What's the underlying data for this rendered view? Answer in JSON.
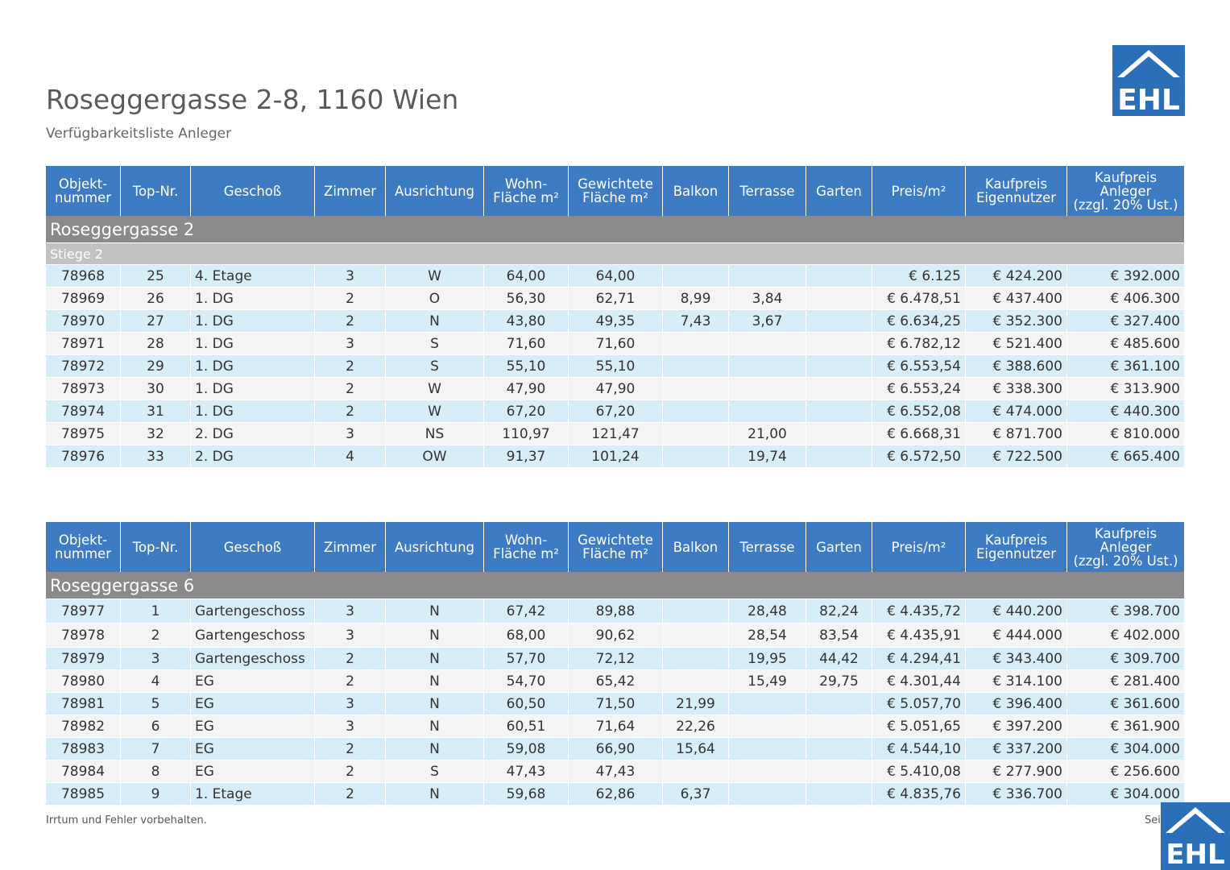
{
  "header": {
    "title": "Roseggergasse 2-8, 1160 Wien",
    "subtitle": "Verfügbarkeitsliste Anleger",
    "logo_text": "EHL"
  },
  "columns": [
    {
      "l1": "Objekt-",
      "l2": "nummer",
      "l3": ""
    },
    {
      "l1": "Top-Nr.",
      "l2": "",
      "l3": ""
    },
    {
      "l1": "Geschoß",
      "l2": "",
      "l3": ""
    },
    {
      "l1": "Zimmer",
      "l2": "",
      "l3": ""
    },
    {
      "l1": "Ausrichtung",
      "l2": "",
      "l3": ""
    },
    {
      "l1": "Wohn-",
      "l2": "Fläche m²",
      "l3": ""
    },
    {
      "l1": "Gewichtete",
      "l2": "Fläche m²",
      "l3": ""
    },
    {
      "l1": "Balkon",
      "l2": "",
      "l3": ""
    },
    {
      "l1": "Terrasse",
      "l2": "",
      "l3": ""
    },
    {
      "l1": "Garten",
      "l2": "",
      "l3": ""
    },
    {
      "l1": "Preis/m²",
      "l2": "",
      "l3": ""
    },
    {
      "l1": "Kaufpreis",
      "l2": "Eigennutzer",
      "l3": ""
    },
    {
      "l1": "Kaufpreis",
      "l2": "Anleger",
      "l3": "(zzgl. 20% Ust.)"
    }
  ],
  "tables": [
    {
      "group": "Roseggergasse 2",
      "subgroup": "Stiege 2",
      "rows": [
        [
          "78968",
          "25",
          "4. Etage",
          "3",
          "W",
          "64,00",
          "64,00",
          "",
          "",
          "",
          "€ 6.125",
          "€ 424.200",
          "€ 392.000"
        ],
        [
          "78969",
          "26",
          "1. DG",
          "2",
          "O",
          "56,30",
          "62,71",
          "8,99",
          "3,84",
          "",
          "€ 6.478,51",
          "€ 437.400",
          "€ 406.300"
        ],
        [
          "78970",
          "27",
          "1. DG",
          "2",
          "N",
          "43,80",
          "49,35",
          "7,43",
          "3,67",
          "",
          "€ 6.634,25",
          "€ 352.300",
          "€ 327.400"
        ],
        [
          "78971",
          "28",
          "1. DG",
          "3",
          "S",
          "71,60",
          "71,60",
          "",
          "",
          "",
          "€ 6.782,12",
          "€ 521.400",
          "€ 485.600"
        ],
        [
          "78972",
          "29",
          "1. DG",
          "2",
          "S",
          "55,10",
          "55,10",
          "",
          "",
          "",
          "€ 6.553,54",
          "€ 388.600",
          "€ 361.100"
        ],
        [
          "78973",
          "30",
          "1. DG",
          "2",
          "W",
          "47,90",
          "47,90",
          "",
          "",
          "",
          "€ 6.553,24",
          "€ 338.300",
          "€ 313.900"
        ],
        [
          "78974",
          "31",
          "1. DG",
          "2",
          "W",
          "67,20",
          "67,20",
          "",
          "",
          "",
          "€ 6.552,08",
          "€ 474.000",
          "€ 440.300"
        ],
        [
          "78975",
          "32",
          "2. DG",
          "3",
          "NS",
          "110,97",
          "121,47",
          "",
          "21,00",
          "",
          "€ 6.668,31",
          "€ 871.700",
          "€ 810.000"
        ],
        [
          "78976",
          "33",
          "2. DG",
          "4",
          "OW",
          "91,37",
          "101,24",
          "",
          "19,74",
          "",
          "€ 6.572,50",
          "€ 722.500",
          "€ 665.400"
        ]
      ]
    },
    {
      "group": "Roseggergasse 6",
      "subgroup": "",
      "rows": [
        [
          "78977",
          "1",
          "Gartengeschoss",
          "3",
          "N",
          "67,42",
          "89,88",
          "",
          "28,48",
          "82,24",
          "€ 4.435,72",
          "€ 440.200",
          "€ 398.700"
        ],
        [
          "78978",
          "2",
          "Gartengeschoss",
          "3",
          "N",
          "68,00",
          "90,62",
          "",
          "28,54",
          "83,54",
          "€ 4.435,91",
          "€ 444.000",
          "€ 402.000"
        ],
        [
          "78979",
          "3",
          "Gartengeschoss",
          "2",
          "N",
          "57,70",
          "72,12",
          "",
          "19,95",
          "44,42",
          "€ 4.294,41",
          "€ 343.400",
          "€ 309.700"
        ],
        [
          "78980",
          "4",
          "EG",
          "2",
          "N",
          "54,70",
          "65,42",
          "",
          "15,49",
          "29,75",
          "€ 4.301,44",
          "€ 314.100",
          "€ 281.400"
        ],
        [
          "78981",
          "5",
          "EG",
          "3",
          "N",
          "60,50",
          "71,50",
          "21,99",
          "",
          "",
          "€ 5.057,70",
          "€ 396.400",
          "€ 361.600"
        ],
        [
          "78982",
          "6",
          "EG",
          "3",
          "N",
          "60,51",
          "71,64",
          "22,26",
          "",
          "",
          "€ 5.051,65",
          "€ 397.200",
          "€ 361.900"
        ],
        [
          "78983",
          "7",
          "EG",
          "2",
          "N",
          "59,08",
          "66,90",
          "15,64",
          "",
          "",
          "€ 4.544,10",
          "€ 337.200",
          "€ 304.000"
        ],
        [
          "78984",
          "8",
          "EG",
          "2",
          "S",
          "47,43",
          "47,43",
          "",
          "",
          "",
          "€ 5.410,08",
          "€ 277.900",
          "€ 256.600"
        ],
        [
          "78985",
          "9",
          "1. Etage",
          "2",
          "N",
          "59,68",
          "62,86",
          "6,37",
          "",
          "",
          "€ 4.835,76",
          "€ 336.700",
          "€ 304.000"
        ]
      ]
    }
  ],
  "footer": {
    "disclaimer": "Irrtum und Fehler vorbehalten.",
    "page_label": "Sei"
  },
  "colors": {
    "header_blue": "#3d7cc2",
    "group_gray": "#8a8a8d",
    "subgroup_gray": "#c2c2c3",
    "row_light_blue": "#d7eef9",
    "row_light_gray": "#f4f4f4",
    "logo_blue": "#2a6fb7"
  }
}
